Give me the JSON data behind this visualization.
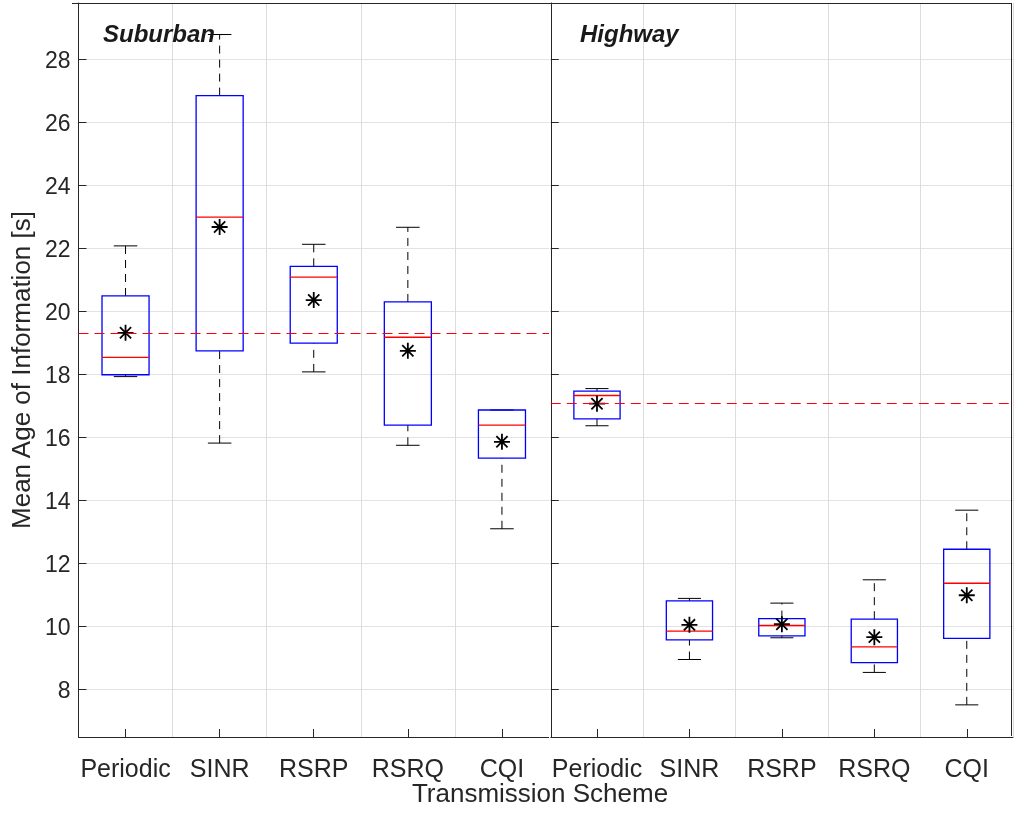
{
  "chart_data": [
    {
      "type": "box",
      "title": "Suburban",
      "ylabel": "Mean Age of Information [s]",
      "xlabel": "Transmission Scheme",
      "categories": [
        "Periodic",
        "SINR",
        "RSRP",
        "RSRQ",
        "CQI"
      ],
      "ylim": [
        6.5,
        29.8
      ],
      "yticks": [
        8,
        10,
        12,
        14,
        16,
        18,
        20,
        22,
        24,
        26,
        28
      ],
      "grid": true,
      "marker": "star",
      "series": [
        {
          "color": "#0000ff",
          "boxes": [
            {
              "low": 17.94,
              "q1": 18.0,
              "median": 18.55,
              "q3": 20.5,
              "high": 22.09,
              "mean": 19.33
            },
            {
              "low": 15.83,
              "q1": 18.76,
              "median": 23.0,
              "q3": 26.86,
              "high": 28.8,
              "mean": 22.69
            },
            {
              "low": 18.09,
              "q1": 19.0,
              "median": 21.1,
              "q3": 21.44,
              "high": 22.14,
              "mean": 20.37
            },
            {
              "low": 15.76,
              "q1": 16.4,
              "median": 19.19,
              "q3": 20.31,
              "high": 22.68,
              "mean": 18.76
            },
            {
              "low": 13.11,
              "q1": 15.35,
              "median": 16.4,
              "q3": 16.88,
              "high": 16.88,
              "mean": 15.87
            }
          ]
        }
      ],
      "ref_lines": [
        {
          "axis": "y",
          "value": 19.33,
          "color": "#ff0000",
          "line_style": "dashed"
        }
      ]
    },
    {
      "type": "box",
      "title": "Highway",
      "categories": [
        "Periodic",
        "SINR",
        "RSRP",
        "RSRQ",
        "CQI"
      ],
      "ylim": [
        6.5,
        29.8
      ],
      "yticks": [
        8,
        10,
        12,
        14,
        16,
        18,
        20,
        22,
        24,
        26,
        28
      ],
      "grid": true,
      "marker": "star",
      "tick_labels": "x",
      "series": [
        {
          "color": "#0000ff",
          "boxes": [
            {
              "low": 16.38,
              "q1": 16.6,
              "median": 17.34,
              "q3": 17.48,
              "high": 17.56,
              "mean": 17.08
            },
            {
              "low": 8.96,
              "q1": 9.58,
              "median": 9.86,
              "q3": 10.82,
              "high": 10.9,
              "mean": 10.06
            },
            {
              "low": 9.65,
              "q1": 9.71,
              "median": 10.04,
              "q3": 10.26,
              "high": 10.75,
              "mean": 10.08
            },
            {
              "low": 8.55,
              "q1": 8.86,
              "median": 9.36,
              "q3": 10.24,
              "high": 11.49,
              "mean": 9.67
            },
            {
              "low": 7.52,
              "q1": 9.63,
              "median": 11.38,
              "q3": 12.46,
              "high": 13.7,
              "mean": 11.0
            }
          ]
        }
      ],
      "ref_lines": [
        {
          "axis": "y",
          "value": 17.08,
          "color": "#ff0000",
          "line_style": "dashed"
        }
      ]
    }
  ]
}
